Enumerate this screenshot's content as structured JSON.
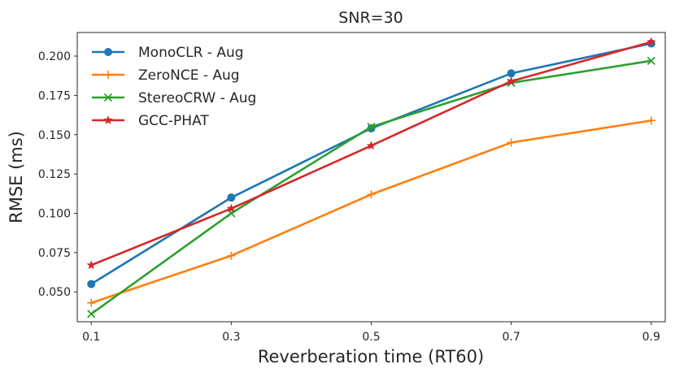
{
  "chart_data": {
    "type": "line",
    "title": "SNR=30",
    "xlabel": "Reverberation time (RT60)",
    "ylabel": "RMSE (ms)",
    "x": [
      0.1,
      0.3,
      0.5,
      0.7,
      0.9
    ],
    "x_tick_labels": [
      "0.1",
      "0.3",
      "0.5",
      "0.7",
      "0.9"
    ],
    "xlim": [
      0.08,
      0.92
    ],
    "ylim": [
      0.031,
      0.215
    ],
    "y_ticks": [
      0.05,
      0.075,
      0.1,
      0.125,
      0.15,
      0.175,
      0.2
    ],
    "y_tick_labels": [
      "0.050",
      "0.075",
      "0.100",
      "0.125",
      "0.150",
      "0.175",
      "0.200"
    ],
    "grid": false,
    "legend_position": "top-left",
    "series": [
      {
        "name": "MonoCLR - Aug",
        "color": "#1f77b4",
        "marker": "circle",
        "values": [
          0.055,
          0.11,
          0.154,
          0.189,
          0.208
        ]
      },
      {
        "name": "ZeroNCE - Aug",
        "color": "#ff7f0e",
        "marker": "plus",
        "values": [
          0.043,
          0.073,
          0.112,
          0.145,
          0.159
        ]
      },
      {
        "name": "StereoCRW - Aug",
        "color": "#2ca02c",
        "marker": "x",
        "values": [
          0.036,
          0.1,
          0.155,
          0.183,
          0.197
        ]
      },
      {
        "name": "GCC-PHAT",
        "color": "#d62728",
        "marker": "star",
        "values": [
          0.067,
          0.103,
          0.143,
          0.184,
          0.209
        ]
      }
    ]
  }
}
